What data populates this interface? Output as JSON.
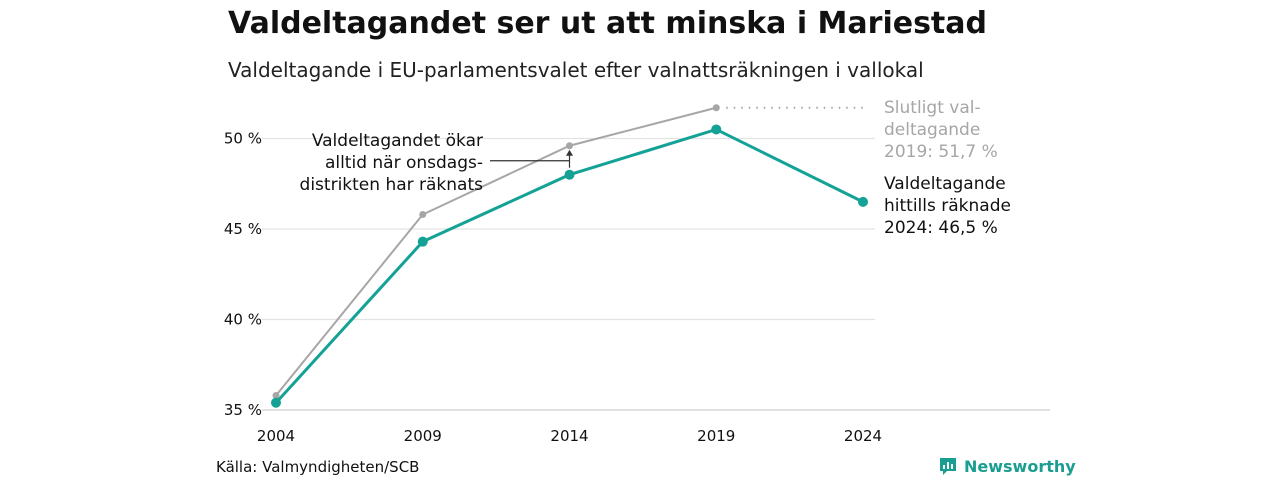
{
  "header": {
    "title": "Valdeltagandet ser ut att minska i Mariestad",
    "subtitle": "Valdeltagande i EU-parlamentsvalet efter valnattsräkningen i vallokal"
  },
  "footer": {
    "source": "Källa: Valmyndigheten/SCB",
    "brand": "Newsworthy",
    "brand_icon": "bar-chart-logo-icon"
  },
  "colors": {
    "final_series": "#a6a6a6",
    "preliminary_series": "#15a296",
    "grid": "#e3e3e3",
    "brand": "#1a9e92"
  },
  "chart_data": {
    "type": "line",
    "x": [
      2004,
      2009,
      2014,
      2019,
      2024
    ],
    "x_ticks": [
      "2004",
      "2009",
      "2014",
      "2019",
      "2024"
    ],
    "ylim": [
      35,
      52
    ],
    "y_ticks": [
      {
        "value": 35,
        "label": "35 %"
      },
      {
        "value": 40,
        "label": "40 %"
      },
      {
        "value": 45,
        "label": "45 %"
      },
      {
        "value": 50,
        "label": "50 %"
      }
    ],
    "grid": true,
    "legend": "none",
    "series": [
      {
        "key": "final",
        "values": [
          35.8,
          45.8,
          49.6,
          51.7,
          null
        ],
        "label_lines": [
          "Slutligt val-",
          "deltagande",
          "2019: 51,7 %"
        ]
      },
      {
        "key": "preliminary",
        "values": [
          35.4,
          44.3,
          48.0,
          50.5,
          46.5
        ],
        "label_lines": [
          "Valdeltagande",
          "hittills räknade",
          "2024: 46,5 %"
        ]
      }
    ],
    "annotation": {
      "lines": [
        "Valdeltagandet ökar",
        "alltid när onsdags-",
        "distrikten har räknats"
      ],
      "x": 2014
    }
  }
}
